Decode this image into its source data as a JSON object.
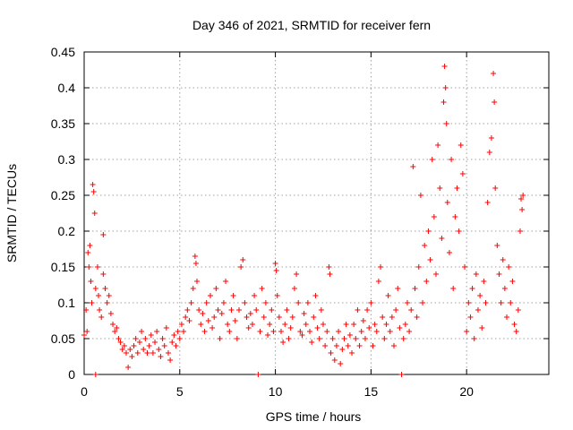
{
  "chart_data": {
    "type": "scatter",
    "title": "Day 346 of 2021, SRMTID for receiver fern",
    "xlabel": "GPS time / hours",
    "ylabel": "SRMTID / TECUs",
    "xlim": [
      0,
      24.3
    ],
    "ylim": [
      0,
      0.45
    ],
    "x_ticks": [
      0,
      5,
      10,
      15,
      20
    ],
    "x_tick_labels": [
      "0",
      "5",
      "10",
      "15",
      "20"
    ],
    "y_ticks": [
      0,
      0.05,
      0.1,
      0.15,
      0.2,
      0.25,
      0.3,
      0.35,
      0.4,
      0.45
    ],
    "y_tick_labels": [
      "0",
      "0.05",
      "0.1",
      "0.15",
      "0.2",
      "0.25",
      "0.3",
      "0.35",
      "0.4",
      "0.45"
    ],
    "grid": true,
    "marker": "+",
    "color": "#ff0000",
    "series": [
      {
        "name": "SRMTID",
        "points": [
          [
            0.0,
            0.055
          ],
          [
            0.1,
            0.09
          ],
          [
            0.15,
            0.06
          ],
          [
            0.2,
            0.17
          ],
          [
            0.25,
            0.15
          ],
          [
            0.3,
            0.18
          ],
          [
            0.35,
            0.13
          ],
          [
            0.4,
            0.1
          ],
          [
            0.45,
            0.265
          ],
          [
            0.5,
            0.255
          ],
          [
            0.55,
            0.225
          ],
          [
            0.6,
            0.0
          ],
          [
            0.6,
            0.12
          ],
          [
            0.7,
            0.15
          ],
          [
            0.75,
            0.11
          ],
          [
            0.8,
            0.09
          ],
          [
            0.9,
            0.08
          ],
          [
            1.0,
            0.195
          ],
          [
            1.0,
            0.14
          ],
          [
            1.1,
            0.12
          ],
          [
            1.2,
            0.1
          ],
          [
            1.3,
            0.11
          ],
          [
            1.4,
            0.085
          ],
          [
            1.5,
            0.07
          ],
          [
            1.6,
            0.06
          ],
          [
            1.7,
            0.065
          ],
          [
            1.8,
            0.05
          ],
          [
            1.9,
            0.045
          ],
          [
            2.0,
            0.035
          ],
          [
            2.1,
            0.04
          ],
          [
            2.2,
            0.03
          ],
          [
            2.3,
            0.01
          ],
          [
            2.4,
            0.035
          ],
          [
            2.5,
            0.025
          ],
          [
            2.6,
            0.04
          ],
          [
            2.7,
            0.05
          ],
          [
            2.8,
            0.03
          ],
          [
            2.9,
            0.045
          ],
          [
            3.0,
            0.06
          ],
          [
            3.1,
            0.035
          ],
          [
            3.2,
            0.05
          ],
          [
            3.3,
            0.03
          ],
          [
            3.4,
            0.04
          ],
          [
            3.5,
            0.055
          ],
          [
            3.6,
            0.03
          ],
          [
            3.7,
            0.045
          ],
          [
            3.8,
            0.06
          ],
          [
            3.9,
            0.035
          ],
          [
            4.0,
            0.025
          ],
          [
            4.1,
            0.05
          ],
          [
            4.2,
            0.04
          ],
          [
            4.3,
            0.065
          ],
          [
            4.4,
            0.03
          ],
          [
            4.5,
            0.02
          ],
          [
            4.6,
            0.045
          ],
          [
            4.7,
            0.055
          ],
          [
            4.8,
            0.04
          ],
          [
            4.9,
            0.06
          ],
          [
            5.0,
            0.05
          ],
          [
            5.1,
            0.07
          ],
          [
            5.2,
            0.06
          ],
          [
            5.3,
            0.08
          ],
          [
            5.4,
            0.09
          ],
          [
            5.5,
            0.075
          ],
          [
            5.6,
            0.1
          ],
          [
            5.7,
            0.12
          ],
          [
            5.8,
            0.165
          ],
          [
            5.85,
            0.155
          ],
          [
            5.9,
            0.13
          ],
          [
            6.0,
            0.09
          ],
          [
            6.1,
            0.07
          ],
          [
            6.2,
            0.085
          ],
          [
            6.3,
            0.06
          ],
          [
            6.4,
            0.1
          ],
          [
            6.5,
            0.075
          ],
          [
            6.6,
            0.11
          ],
          [
            6.7,
            0.065
          ],
          [
            6.8,
            0.08
          ],
          [
            6.9,
            0.12
          ],
          [
            7.0,
            0.09
          ],
          [
            7.1,
            0.05
          ],
          [
            7.2,
            0.085
          ],
          [
            7.3,
            0.1
          ],
          [
            7.4,
            0.13
          ],
          [
            7.5,
            0.07
          ],
          [
            7.6,
            0.06
          ],
          [
            7.7,
            0.09
          ],
          [
            7.8,
            0.11
          ],
          [
            7.9,
            0.075
          ],
          [
            8.0,
            0.05
          ],
          [
            8.1,
            0.09
          ],
          [
            8.2,
            0.15
          ],
          [
            8.3,
            0.16
          ],
          [
            8.4,
            0.1
          ],
          [
            8.5,
            0.08
          ],
          [
            8.6,
            0.065
          ],
          [
            8.7,
            0.085
          ],
          [
            8.8,
            0.07
          ],
          [
            8.9,
            0.11
          ],
          [
            9.0,
            0.09
          ],
          [
            9.1,
            0.0
          ],
          [
            9.2,
            0.06
          ],
          [
            9.3,
            0.12
          ],
          [
            9.4,
            0.08
          ],
          [
            9.5,
            0.1
          ],
          [
            9.6,
            0.055
          ],
          [
            9.7,
            0.07
          ],
          [
            9.8,
            0.09
          ],
          [
            9.9,
            0.06
          ],
          [
            10.0,
            0.155
          ],
          [
            10.05,
            0.145
          ],
          [
            10.1,
            0.11
          ],
          [
            10.2,
            0.08
          ],
          [
            10.3,
            0.06
          ],
          [
            10.4,
            0.045
          ],
          [
            10.5,
            0.07
          ],
          [
            10.6,
            0.09
          ],
          [
            10.7,
            0.05
          ],
          [
            10.8,
            0.065
          ],
          [
            10.9,
            0.08
          ],
          [
            11.0,
            0.12
          ],
          [
            11.1,
            0.14
          ],
          [
            11.2,
            0.1
          ],
          [
            11.3,
            0.06
          ],
          [
            11.4,
            0.055
          ],
          [
            11.5,
            0.085
          ],
          [
            11.6,
            0.07
          ],
          [
            11.7,
            0.1
          ],
          [
            11.8,
            0.06
          ],
          [
            11.9,
            0.045
          ],
          [
            12.0,
            0.08
          ],
          [
            12.1,
            0.11
          ],
          [
            12.2,
            0.065
          ],
          [
            12.3,
            0.05
          ],
          [
            12.4,
            0.09
          ],
          [
            12.5,
            0.07
          ],
          [
            12.6,
            0.04
          ],
          [
            12.7,
            0.06
          ],
          [
            12.8,
            0.15
          ],
          [
            12.85,
            0.14
          ],
          [
            12.9,
            0.03
          ],
          [
            13.0,
            0.05
          ],
          [
            13.1,
            0.02
          ],
          [
            13.2,
            0.04
          ],
          [
            13.3,
            0.06
          ],
          [
            13.4,
            0.015
          ],
          [
            13.5,
            0.035
          ],
          [
            13.6,
            0.05
          ],
          [
            13.7,
            0.07
          ],
          [
            13.8,
            0.04
          ],
          [
            13.9,
            0.055
          ],
          [
            14.0,
            0.03
          ],
          [
            14.1,
            0.07
          ],
          [
            14.2,
            0.05
          ],
          [
            14.3,
            0.09
          ],
          [
            14.4,
            0.04
          ],
          [
            14.5,
            0.06
          ],
          [
            14.6,
            0.075
          ],
          [
            14.7,
            0.05
          ],
          [
            14.8,
            0.09
          ],
          [
            14.9,
            0.065
          ],
          [
            15.0,
            0.1
          ],
          [
            15.1,
            0.04
          ],
          [
            15.2,
            0.07
          ],
          [
            15.3,
            0.06
          ],
          [
            15.4,
            0.13
          ],
          [
            15.5,
            0.15
          ],
          [
            15.6,
            0.08
          ],
          [
            15.7,
            0.05
          ],
          [
            15.8,
            0.07
          ],
          [
            15.9,
            0.11
          ],
          [
            16.0,
            0.06
          ],
          [
            16.1,
            0.08
          ],
          [
            16.2,
            0.04
          ],
          [
            16.3,
            0.09
          ],
          [
            16.4,
            0.12
          ],
          [
            16.5,
            0.065
          ],
          [
            16.6,
            0.0
          ],
          [
            16.7,
            0.05
          ],
          [
            16.8,
            0.07
          ],
          [
            16.9,
            0.1
          ],
          [
            17.0,
            0.06
          ],
          [
            17.1,
            0.09
          ],
          [
            17.2,
            0.29
          ],
          [
            17.3,
            0.12
          ],
          [
            17.4,
            0.08
          ],
          [
            17.5,
            0.15
          ],
          [
            17.6,
            0.25
          ],
          [
            17.7,
            0.1
          ],
          [
            17.8,
            0.18
          ],
          [
            17.9,
            0.13
          ],
          [
            18.0,
            0.2
          ],
          [
            18.1,
            0.16
          ],
          [
            18.2,
            0.3
          ],
          [
            18.3,
            0.22
          ],
          [
            18.4,
            0.14
          ],
          [
            18.5,
            0.32
          ],
          [
            18.6,
            0.26
          ],
          [
            18.7,
            0.19
          ],
          [
            18.8,
            0.38
          ],
          [
            18.85,
            0.43
          ],
          [
            18.9,
            0.4
          ],
          [
            18.95,
            0.35
          ],
          [
            19.0,
            0.24
          ],
          [
            19.1,
            0.17
          ],
          [
            19.2,
            0.3
          ],
          [
            19.3,
            0.12
          ],
          [
            19.4,
            0.22
          ],
          [
            19.5,
            0.26
          ],
          [
            19.6,
            0.2
          ],
          [
            19.7,
            0.32
          ],
          [
            19.8,
            0.28
          ],
          [
            19.9,
            0.15
          ],
          [
            20.0,
            0.06
          ],
          [
            20.1,
            0.1
          ],
          [
            20.2,
            0.08
          ],
          [
            20.3,
            0.12
          ],
          [
            20.4,
            0.05
          ],
          [
            20.5,
            0.14
          ],
          [
            20.6,
            0.09
          ],
          [
            20.7,
            0.11
          ],
          [
            20.8,
            0.065
          ],
          [
            20.9,
            0.13
          ],
          [
            21.0,
            0.1
          ],
          [
            21.1,
            0.24
          ],
          [
            21.2,
            0.31
          ],
          [
            21.3,
            0.33
          ],
          [
            21.4,
            0.42
          ],
          [
            21.45,
            0.38
          ],
          [
            21.5,
            0.26
          ],
          [
            21.6,
            0.18
          ],
          [
            21.7,
            0.14
          ],
          [
            21.8,
            0.1
          ],
          [
            21.9,
            0.16
          ],
          [
            22.0,
            0.12
          ],
          [
            22.1,
            0.08
          ],
          [
            22.2,
            0.15
          ],
          [
            22.3,
            0.1
          ],
          [
            22.4,
            0.13
          ],
          [
            22.5,
            0.07
          ],
          [
            22.6,
            0.06
          ],
          [
            22.7,
            0.09
          ],
          [
            22.8,
            0.2
          ],
          [
            22.85,
            0.245
          ],
          [
            22.9,
            0.23
          ],
          [
            22.95,
            0.25
          ]
        ]
      }
    ]
  }
}
